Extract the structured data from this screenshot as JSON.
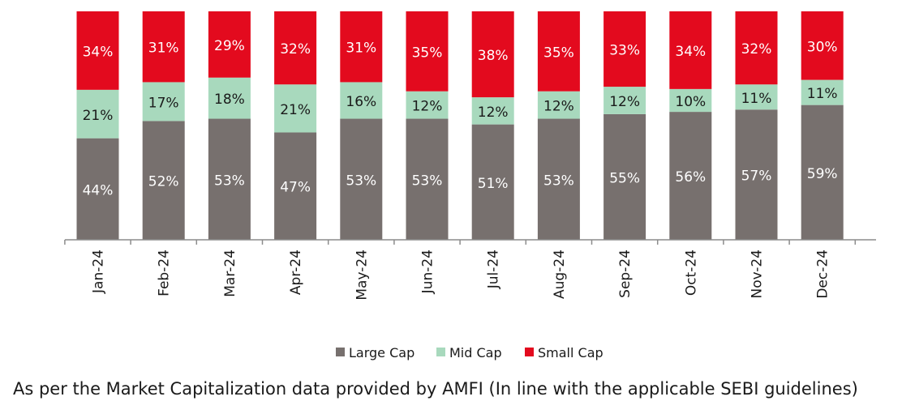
{
  "chart_data": {
    "type": "bar",
    "stacked": true,
    "percent_stacked": true,
    "categories": [
      "Jan-24",
      "Feb-24",
      "Mar-24",
      "Apr-24",
      "May-24",
      "Jun-24",
      "Jul-24",
      "Aug-24",
      "Sep-24",
      "Oct-24",
      "Nov-24",
      "Dec-24"
    ],
    "series": [
      {
        "name": "Large Cap",
        "color": "#77706e",
        "values": [
          44,
          52,
          53,
          47,
          53,
          53,
          51,
          53,
          55,
          56,
          57,
          59
        ],
        "labels": [
          "44%",
          "52%",
          "53%",
          "47%",
          "53%",
          "53%",
          "51%",
          "53%",
          "55%",
          "56%",
          "57%",
          "59%"
        ]
      },
      {
        "name": "Mid Cap",
        "color": "#a8d9bd",
        "values": [
          21,
          17,
          18,
          21,
          16,
          12,
          12,
          12,
          12,
          10,
          11,
          11
        ],
        "labels": [
          "21%",
          "17%",
          "18%",
          "21%",
          "16%",
          "12%",
          "12%",
          "12%",
          "12%",
          "10%",
          "11%",
          "11%"
        ]
      },
      {
        "name": "Small Cap",
        "color": "#e30a1e",
        "values": [
          34,
          31,
          29,
          32,
          31,
          35,
          38,
          35,
          33,
          34,
          32,
          30
        ],
        "labels": [
          "34%",
          "31%",
          "29%",
          "32%",
          "31%",
          "35%",
          "38%",
          "35%",
          "33%",
          "34%",
          "32%",
          "30%"
        ]
      }
    ],
    "legend_position": "bottom",
    "grid": false,
    "ylim": [
      0,
      100
    ]
  },
  "footnote": "As per the Market Capitalization data provided by AMFI (In line with the applicable SEBI guidelines)"
}
